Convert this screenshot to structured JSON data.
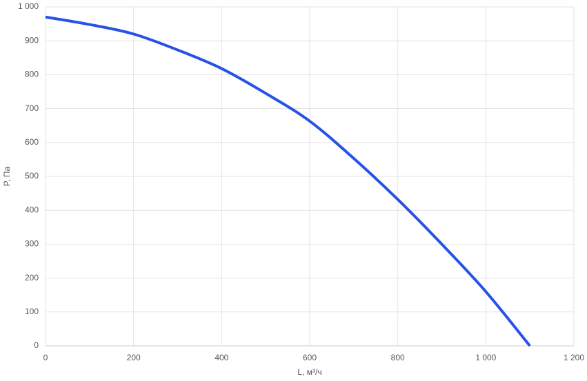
{
  "chart_data": {
    "type": "line",
    "x_label": "L, м³/ч",
    "y_label": "P, Па",
    "x": [
      0,
      100,
      200,
      300,
      400,
      500,
      600,
      700,
      800,
      900,
      1000,
      1100
    ],
    "series": [
      {
        "name": "P",
        "color": "#2652e8",
        "values": [
          970,
          948,
          920,
          873,
          818,
          745,
          663,
          553,
          432,
          300,
          160,
          0
        ]
      }
    ],
    "xlim": [
      0,
      1200
    ],
    "xticks": [
      0,
      200,
      400,
      600,
      800,
      {
        "value": 1000,
        "label": "1 000"
      },
      {
        "value": 1200,
        "label": "1 200"
      }
    ],
    "ylim": [
      0,
      1000
    ],
    "yticks": [
      0,
      100,
      200,
      300,
      400,
      500,
      600,
      700,
      800,
      900,
      {
        "value": 1000,
        "label": "1 000"
      }
    ],
    "grid": true
  }
}
